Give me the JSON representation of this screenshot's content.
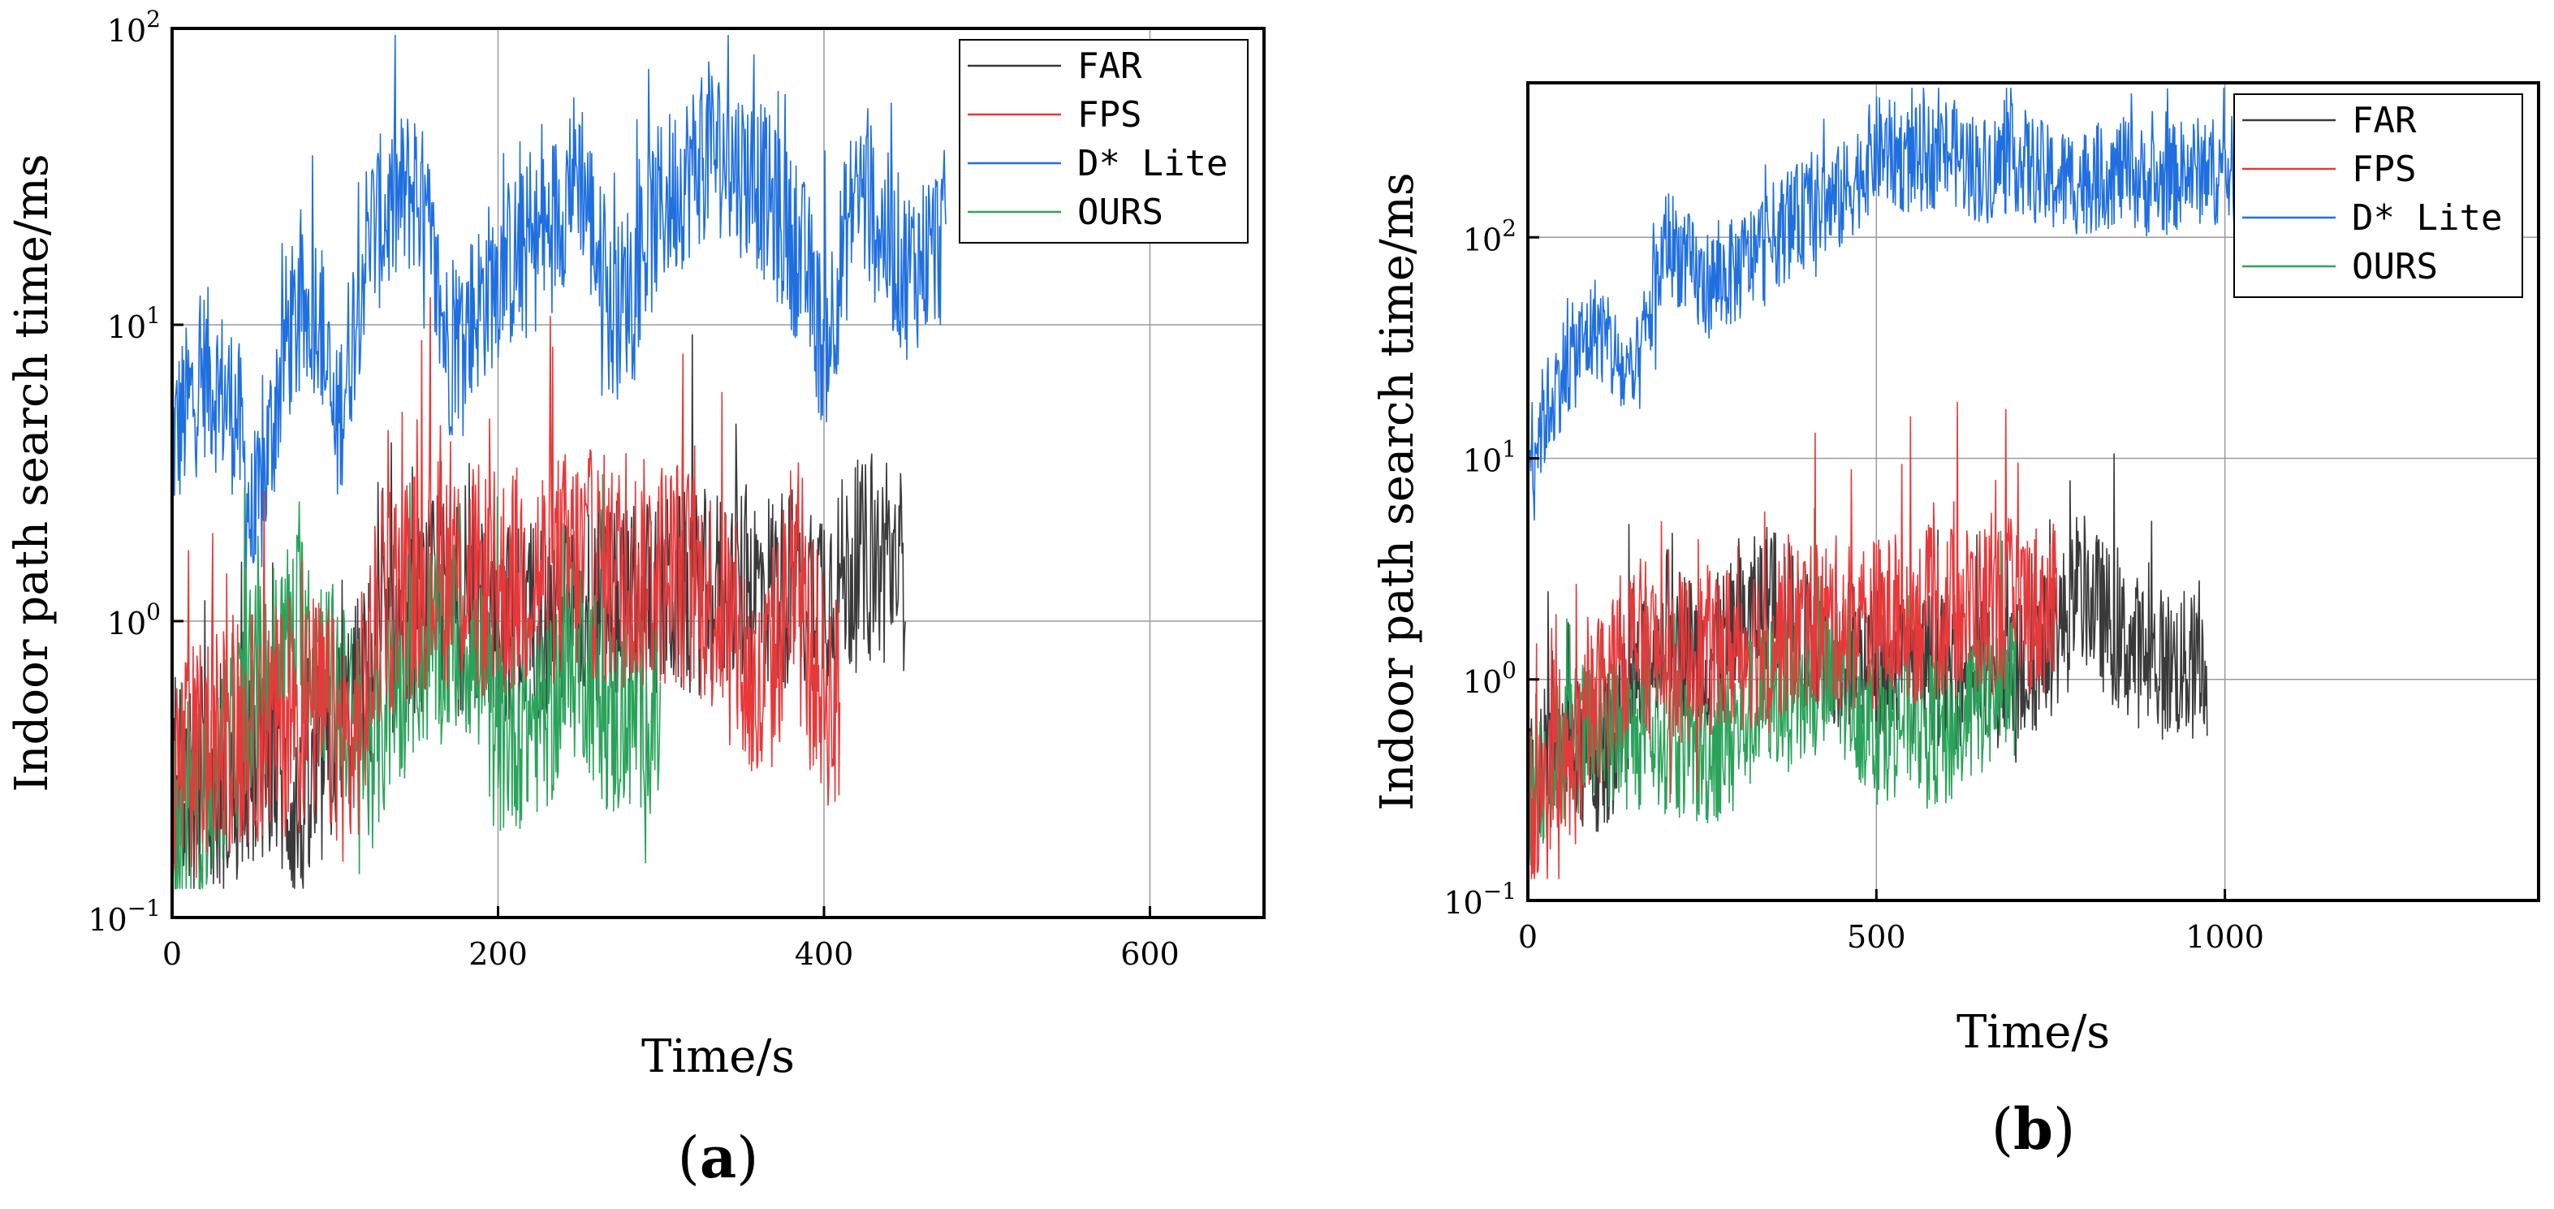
{
  "colors": {
    "FAR": "#3a3a3a",
    "FPS": "#e8383a",
    "D* Lite": "#1f6fe0",
    "OURS": "#2aa35a"
  },
  "chart_data": [
    {
      "type": "line",
      "panel_label": "(a)",
      "panel_paren_open": "(",
      "panel_letter": "a",
      "panel_paren_close": ")",
      "xlabel": "Time/s",
      "ylabel": "Indoor path search time/ms",
      "yscale": "log",
      "xlim": [
        0,
        670
      ],
      "ylim": [
        0.1,
        100
      ],
      "xticks": [
        0,
        200,
        400,
        600
      ],
      "xtick_labels": [
        "0",
        "200",
        "400",
        "600"
      ],
      "yticks": [
        {
          "value": 0.1,
          "base": "10",
          "exp": "−1"
        },
        {
          "value": 1,
          "base": "10",
          "exp": "0"
        },
        {
          "value": 10,
          "base": "10",
          "exp": "1"
        },
        {
          "value": 100,
          "base": "10",
          "exp": "2"
        }
      ],
      "grid": true,
      "legend_position": "top-right",
      "series": [
        {
          "name": "FAR",
          "legend_label": "FAR",
          "x_end": 450,
          "anchors": [
            [
              0,
              0.3
            ],
            [
              30,
              0.25
            ],
            [
              60,
              0.35
            ],
            [
              80,
              0.2
            ],
            [
              100,
              0.4
            ],
            [
              130,
              0.8
            ],
            [
              160,
              1.2
            ],
            [
              200,
              1.0
            ],
            [
              250,
              1.1
            ],
            [
              300,
              1.2
            ],
            [
              350,
              1.3
            ],
            [
              400,
              1.3
            ],
            [
              430,
              1.6
            ],
            [
              450,
              1.5
            ]
          ],
          "spread": 0.35
        },
        {
          "name": "FPS",
          "legend_label": "FPS",
          "x_end": 410,
          "anchors": [
            [
              0,
              0.3
            ],
            [
              30,
              0.4
            ],
            [
              60,
              0.45
            ],
            [
              90,
              0.5
            ],
            [
              110,
              0.35
            ],
            [
              130,
              1.2
            ],
            [
              160,
              1.5
            ],
            [
              200,
              1.3
            ],
            [
              250,
              1.6
            ],
            [
              280,
              1.4
            ],
            [
              310,
              1.5
            ],
            [
              340,
              1.1
            ],
            [
              360,
              0.5
            ],
            [
              380,
              1.3
            ],
            [
              400,
              0.6
            ],
            [
              410,
              0.5
            ]
          ],
          "spread": 0.4
        },
        {
          "name": "D* Lite",
          "legend_label": "D* Lite",
          "x_end": 475,
          "anchors": [
            [
              0,
              4
            ],
            [
              20,
              7
            ],
            [
              40,
              5
            ],
            [
              50,
              1.8
            ],
            [
              70,
              9
            ],
            [
              90,
              12
            ],
            [
              100,
              4
            ],
            [
              120,
              20
            ],
            [
              150,
              30
            ],
            [
              170,
              8
            ],
            [
              200,
              15
            ],
            [
              230,
              20
            ],
            [
              250,
              35
            ],
            [
              270,
              10
            ],
            [
              300,
              25
            ],
            [
              330,
              40
            ],
            [
              360,
              30
            ],
            [
              390,
              15
            ],
            [
              400,
              8
            ],
            [
              420,
              30
            ],
            [
              450,
              15
            ],
            [
              475,
              20
            ]
          ],
          "spread": 0.3
        },
        {
          "name": "OURS",
          "legend_label": "OURS",
          "x_end": 300,
          "anchors": [
            [
              0,
              0.18
            ],
            [
              20,
              0.25
            ],
            [
              50,
              0.6
            ],
            [
              80,
              1.0
            ],
            [
              100,
              0.6
            ],
            [
              120,
              0.35
            ],
            [
              150,
              0.8
            ],
            [
              180,
              0.9
            ],
            [
              200,
              0.4
            ],
            [
              230,
              0.5
            ],
            [
              250,
              0.8
            ],
            [
              270,
              0.45
            ],
            [
              290,
              0.5
            ],
            [
              300,
              0.45
            ]
          ],
          "spread": 0.35
        }
      ],
      "legend_order": [
        "FAR",
        "FPS",
        "D* Lite",
        "OURS"
      ]
    },
    {
      "type": "line",
      "panel_label": "(b)",
      "panel_paren_open": "(",
      "panel_letter": "b",
      "panel_paren_close": ")",
      "xlabel": "Time/s",
      "ylabel": "Indoor path search time/ms",
      "yscale": "log",
      "xlim": [
        0,
        1450
      ],
      "ylim": [
        0.1,
        500
      ],
      "xticks": [
        0,
        500,
        1000
      ],
      "xtick_labels": [
        "0",
        "500",
        "1000"
      ],
      "yticks": [
        {
          "value": 0.1,
          "base": "10",
          "exp": "−1"
        },
        {
          "value": 1,
          "base": "10",
          "exp": "0"
        },
        {
          "value": 10,
          "base": "10",
          "exp": "1"
        },
        {
          "value": 100,
          "base": "10",
          "exp": "2"
        }
      ],
      "grid": true,
      "legend_position": "top-right",
      "series": [
        {
          "name": "FAR",
          "legend_label": "FAR",
          "x_end": 975,
          "anchors": [
            [
              0,
              0.35
            ],
            [
              50,
              0.5
            ],
            [
              100,
              0.4
            ],
            [
              150,
              0.8
            ],
            [
              200,
              1.8
            ],
            [
              250,
              1.2
            ],
            [
              300,
              1.6
            ],
            [
              350,
              2.5
            ],
            [
              400,
              1.5
            ],
            [
              500,
              1.2
            ],
            [
              600,
              1.1
            ],
            [
              700,
              1.0
            ],
            [
              750,
              1.5
            ],
            [
              800,
              2.5
            ],
            [
              850,
              1.5
            ],
            [
              900,
              1.2
            ],
            [
              975,
              1.1
            ]
          ],
          "spread": 0.35
        },
        {
          "name": "FPS",
          "legend_label": "FPS",
          "x_end": 760,
          "anchors": [
            [
              0,
              0.25
            ],
            [
              50,
              0.3
            ],
            [
              100,
              0.8
            ],
            [
              150,
              1.5
            ],
            [
              200,
              1.2
            ],
            [
              300,
              1.4
            ],
            [
              400,
              1.8
            ],
            [
              500,
              1.8
            ],
            [
              600,
              2.0
            ],
            [
              700,
              2.2
            ],
            [
              760,
              2.0
            ]
          ],
          "spread": 0.4
        },
        {
          "name": "D* Lite",
          "legend_label": "D* Lite",
          "x_end": 1020,
          "anchors": [
            [
              0,
              10
            ],
            [
              50,
              25
            ],
            [
              100,
              40
            ],
            [
              150,
              20
            ],
            [
              200,
              100
            ],
            [
              250,
              60
            ],
            [
              300,
              70
            ],
            [
              350,
              100
            ],
            [
              400,
              130
            ],
            [
              450,
              150
            ],
            [
              500,
              250
            ],
            [
              550,
              220
            ],
            [
              600,
              250
            ],
            [
              650,
              200
            ],
            [
              700,
              230
            ],
            [
              750,
              180
            ],
            [
              800,
              180
            ],
            [
              850,
              200
            ],
            [
              900,
              170
            ],
            [
              950,
              200
            ],
            [
              1020,
              200
            ]
          ],
          "spread": 0.25
        },
        {
          "name": "OURS",
          "legend_label": "OURS",
          "x_end": 700,
          "anchors": [
            [
              0,
              0.3
            ],
            [
              50,
              0.5
            ],
            [
              100,
              0.6
            ],
            [
              150,
              0.55
            ],
            [
              200,
              0.55
            ],
            [
              250,
              0.45
            ],
            [
              300,
              0.6
            ],
            [
              350,
              0.9
            ],
            [
              400,
              0.8
            ],
            [
              450,
              1.0
            ],
            [
              500,
              0.6
            ],
            [
              550,
              0.7
            ],
            [
              600,
              0.55
            ],
            [
              650,
              0.8
            ],
            [
              700,
              1.0
            ]
          ],
          "spread": 0.35
        }
      ],
      "legend_order": [
        "FAR",
        "FPS",
        "D* Lite",
        "OURS"
      ]
    }
  ]
}
